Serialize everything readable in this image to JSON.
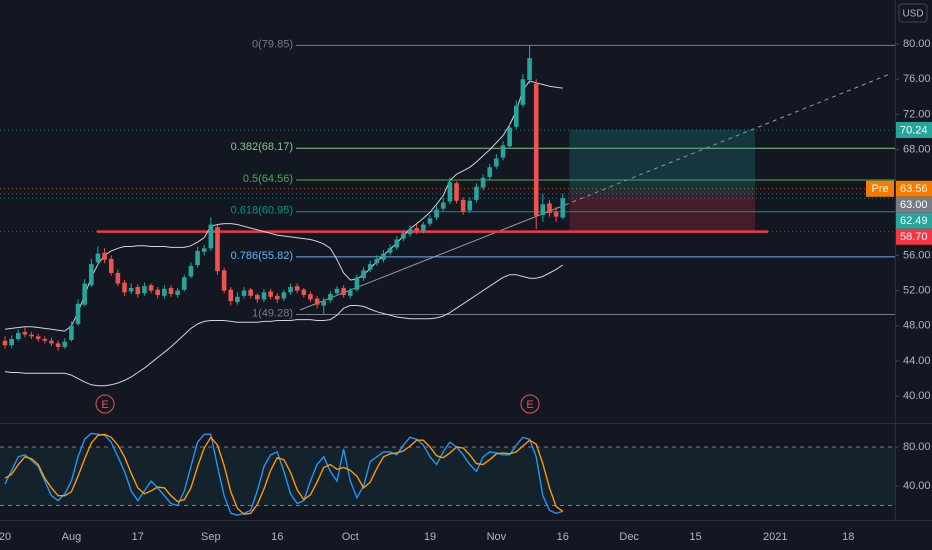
{
  "chart_data": {
    "type": "candlestick",
    "currency": "USD",
    "categories": [
      "20",
      null,
      null,
      null,
      null,
      null,
      null,
      null,
      null,
      null,
      "Aug",
      null,
      null,
      null,
      null,
      null,
      null,
      null,
      null,
      null,
      "17",
      null,
      null,
      null,
      null,
      null,
      null,
      null,
      null,
      null,
      null,
      "Sep",
      null,
      null,
      null,
      null,
      null,
      null,
      null,
      null,
      null,
      "16",
      null,
      null,
      null,
      null,
      null,
      null,
      null,
      null,
      null,
      null,
      "Oct",
      null,
      null,
      null,
      null,
      null,
      null,
      null,
      null,
      null,
      null,
      null,
      "19",
      null,
      null,
      null,
      null,
      null,
      null,
      null,
      null,
      null,
      "Nov",
      null,
      null,
      null,
      null,
      null,
      null,
      null,
      null,
      null,
      "16",
      null,
      null,
      null,
      null,
      null,
      null,
      null,
      null,
      null,
      "Dec",
      null,
      null,
      null,
      null,
      null,
      null,
      null,
      null,
      null,
      "15",
      null,
      null,
      null,
      null,
      null,
      null,
      null,
      null,
      null,
      null,
      null,
      "2021",
      null,
      null,
      null,
      null,
      null,
      null,
      null,
      null,
      null,
      null,
      "18",
      null,
      null,
      null,
      null,
      null,
      null,
      null
    ],
    "open": [
      46.3,
      45.8,
      46.5,
      47.3,
      47.0,
      46.8,
      46.5,
      46.3,
      46.0,
      45.6,
      46.4,
      48.2,
      50.4,
      52.6,
      55.2,
      56.3,
      55.6,
      54.0,
      52.9,
      51.9,
      52.4,
      51.7,
      52.6,
      52.1,
      51.4,
      52.3,
      51.5,
      52.1,
      53.6,
      54.9,
      56.4,
      56.8,
      59.2,
      54.3,
      52.1,
      50.7,
      51.4,
      52.1,
      51.5,
      51.0,
      51.9,
      51.4,
      51.1,
      51.8,
      52.5,
      52.1,
      51.6,
      51.1,
      50.3,
      50.9,
      51.7,
      52.3,
      51.4,
      52.1,
      53.4,
      54.4,
      55.1,
      55.5,
      56.3,
      56.9,
      57.9,
      58.4,
      59.1,
      58.8,
      59.6,
      60.3,
      61.3,
      62.1,
      64.2,
      62.3,
      61.1,
      62.3,
      63.7,
      64.9,
      66.1,
      67.1,
      68.4,
      70.6,
      73.1,
      75.9,
      75.5,
      60.6,
      61.9,
      60.9,
      60.3,
      null,
      null,
      null,
      null,
      null,
      null,
      null,
      null,
      null,
      null,
      null,
      null,
      null,
      null,
      null,
      null,
      null,
      null,
      null,
      null,
      null,
      null,
      null,
      null,
      null,
      null,
      null,
      null,
      null,
      null,
      null,
      null,
      null,
      null,
      null,
      null,
      null,
      null,
      null,
      null,
      null,
      null,
      null,
      null,
      null,
      null,
      null,
      null,
      null,
      null
    ],
    "high": [
      46.8,
      46.9,
      47.6,
      47.8,
      47.3,
      47.1,
      46.8,
      46.6,
      46.3,
      46.6,
      48.5,
      51.0,
      53.3,
      55.6,
      57.0,
      56.8,
      56.0,
      54.4,
      53.2,
      52.8,
      52.7,
      52.9,
      52.8,
      52.4,
      52.6,
      52.6,
      52.3,
      53.8,
      55.2,
      57.0,
      57.2,
      60.3,
      59.5,
      54.6,
      52.4,
      51.8,
      52.4,
      52.3,
      51.7,
      52.2,
      52.2,
      51.7,
      52.1,
      52.8,
      52.8,
      52.3,
      51.9,
      51.4,
      51.2,
      51.9,
      52.5,
      52.6,
      52.3,
      53.8,
      54.7,
      55.4,
      56.0,
      56.6,
      57.2,
      58.2,
      58.9,
      59.4,
      59.5,
      59.8,
      60.6,
      61.6,
      62.5,
      64.8,
      64.4,
      62.6,
      62.6,
      64.2,
      65.2,
      66.4,
      67.5,
      69.0,
      71.0,
      73.6,
      76.6,
      79.85,
      76.0,
      63.0,
      62.3,
      61.5,
      63.0,
      null,
      null,
      null,
      null,
      null,
      null,
      null,
      null,
      null,
      null,
      null,
      null,
      null,
      null,
      null,
      null,
      null,
      null,
      null,
      null,
      null,
      null,
      null,
      null,
      null,
      null,
      null,
      null,
      null,
      null,
      null,
      null,
      null,
      null,
      null,
      null,
      null,
      null,
      null,
      null,
      null,
      null,
      null,
      null,
      null,
      null,
      null,
      null,
      null,
      null
    ],
    "low": [
      45.4,
      45.5,
      46.3,
      46.7,
      46.5,
      46.2,
      46.0,
      45.7,
      45.2,
      45.4,
      46.2,
      48.0,
      50.2,
      52.4,
      54.9,
      55.1,
      53.7,
      52.5,
      51.4,
      51.6,
      51.2,
      51.4,
      51.7,
      51.1,
      51.1,
      51.3,
      51.2,
      51.9,
      53.4,
      54.6,
      56.0,
      56.5,
      53.8,
      51.7,
      50.3,
      50.4,
      51.1,
      51.1,
      50.6,
      50.7,
      51.0,
      50.6,
      50.8,
      51.5,
      51.7,
      51.2,
      50.7,
      50.0,
      49.3,
      50.6,
      51.4,
      51.2,
      51.1,
      51.9,
      53.1,
      54.1,
      54.8,
      55.2,
      56.0,
      56.6,
      57.6,
      58.1,
      58.4,
      58.5,
      59.3,
      60.0,
      61.0,
      61.8,
      61.9,
      60.6,
      60.8,
      62.0,
      63.4,
      64.6,
      65.8,
      66.8,
      68.1,
      70.3,
      72.8,
      75.5,
      59.0,
      59.8,
      60.4,
      59.8,
      60.1,
      null,
      null,
      null,
      null,
      null,
      null,
      null,
      null,
      null,
      null,
      null,
      null,
      null,
      null,
      null,
      null,
      null,
      null,
      null,
      null,
      null,
      null,
      null,
      null,
      null,
      null,
      null,
      null,
      null,
      null,
      null,
      null,
      null,
      null,
      null,
      null,
      null,
      null,
      null,
      null,
      null,
      null,
      null,
      null,
      null,
      null,
      null,
      null,
      null,
      null
    ],
    "close": [
      45.8,
      46.5,
      47.2,
      47.0,
      46.8,
      46.5,
      46.3,
      46.0,
      45.6,
      46.2,
      48.0,
      50.5,
      52.8,
      55.0,
      56.2,
      55.5,
      54.0,
      52.8,
      51.8,
      52.3,
      51.6,
      52.5,
      52.0,
      51.5,
      52.2,
      51.6,
      52.0,
      53.5,
      54.8,
      56.5,
      56.8,
      59.5,
      54.2,
      52.0,
      50.8,
      51.3,
      52.0,
      51.4,
      51.0,
      51.8,
      51.3,
      51.0,
      51.8,
      52.4,
      52.0,
      51.5,
      51.0,
      50.4,
      50.8,
      51.6,
      52.2,
      51.5,
      52.0,
      53.5,
      54.3,
      55.0,
      55.6,
      56.2,
      56.8,
      57.8,
      58.5,
      59.0,
      58.8,
      59.5,
      60.2,
      61.2,
      62.0,
      64.3,
      62.2,
      61.0,
      62.2,
      63.8,
      64.8,
      66.0,
      67.0,
      68.5,
      70.5,
      73.0,
      76.0,
      78.4,
      60.5,
      61.8,
      60.8,
      60.4,
      62.49,
      null,
      null,
      null,
      null,
      null,
      null,
      null,
      null,
      null,
      null,
      null,
      null,
      null,
      null,
      null,
      null,
      null,
      null,
      null,
      null,
      null,
      null,
      null,
      null,
      null,
      null,
      null,
      null,
      null,
      null,
      null,
      null,
      null,
      null,
      null,
      null,
      null,
      null,
      null,
      null,
      null,
      null,
      null,
      null,
      null,
      null,
      null,
      null,
      null,
      null
    ],
    "colors": {
      "up": "#26a69a",
      "down": "#ef5350"
    },
    "ylim": [
      37.3,
      85
    ],
    "yticks": [
      {
        "value": 40,
        "label": "40.00"
      },
      {
        "value": 44,
        "label": "44.00"
      },
      {
        "value": 48,
        "label": "48.00"
      },
      {
        "value": 52,
        "label": "52.00"
      },
      {
        "value": 56,
        "label": "56.00"
      },
      {
        "value": 68,
        "label": "68.00"
      },
      {
        "value": 72,
        "label": "72.00"
      },
      {
        "value": 76,
        "label": "76.00"
      },
      {
        "value": 80,
        "label": "80.00"
      }
    ],
    "bollinger": {
      "color": "#d1d4dc",
      "upper": [
        47.6,
        47.7,
        47.8,
        47.9,
        47.9,
        47.8,
        47.7,
        47.6,
        47.5,
        47.4,
        48.0,
        49.5,
        51.5,
        53.5,
        55.0,
        56.0,
        56.5,
        56.8,
        57.0,
        57.0,
        57.1,
        57.1,
        57.0,
        57.0,
        57.0,
        56.9,
        56.9,
        56.9,
        57.1,
        57.5,
        58.0,
        59.3,
        59.5,
        59.6,
        59.6,
        59.5,
        59.3,
        59.1,
        58.9,
        58.7,
        58.5,
        58.3,
        58.2,
        58.1,
        58.0,
        57.9,
        57.8,
        57.6,
        57.3,
        56.8,
        55.5,
        54.0,
        53.2,
        53.3,
        53.8,
        54.5,
        55.3,
        56.0,
        56.7,
        57.4,
        58.2,
        59.0,
        59.6,
        60.2,
        60.9,
        61.8,
        62.8,
        64.5,
        65.2,
        65.6,
        66.0,
        66.6,
        67.3,
        68.0,
        68.8,
        69.6,
        70.8,
        72.4,
        74.8,
        75.8,
        75.6,
        75.4,
        75.2,
        75.1,
        75.0,
        null,
        null,
        null,
        null,
        null,
        null,
        null,
        null,
        null,
        null,
        null,
        null,
        null,
        null,
        null,
        null,
        null,
        null,
        null,
        null,
        null,
        null,
        null,
        null,
        null,
        null,
        null,
        null,
        null,
        null,
        null,
        null,
        null,
        null,
        null,
        null,
        null,
        null,
        null,
        null,
        null,
        null,
        null,
        null,
        null,
        null,
        null,
        null,
        null,
        null
      ],
      "lower": [
        42.8,
        42.7,
        42.7,
        42.6,
        42.6,
        42.6,
        42.6,
        42.6,
        42.6,
        42.6,
        42.4,
        42.0,
        41.6,
        41.3,
        41.2,
        41.2,
        41.3,
        41.5,
        41.8,
        42.2,
        42.7,
        43.2,
        43.8,
        44.4,
        45.0,
        45.6,
        46.3,
        47.0,
        47.7,
        48.2,
        48.5,
        48.6,
        48.6,
        48.6,
        48.5,
        48.4,
        48.4,
        48.4,
        48.4,
        48.5,
        48.5,
        48.6,
        48.6,
        48.6,
        48.7,
        48.7,
        48.7,
        48.6,
        48.6,
        48.7,
        49.2,
        50.0,
        50.3,
        50.3,
        50.2,
        49.9,
        49.6,
        49.4,
        49.2,
        49.0,
        48.9,
        48.8,
        48.8,
        48.8,
        48.8,
        48.9,
        49.1,
        49.5,
        50.0,
        50.5,
        51.0,
        51.5,
        52.0,
        52.5,
        53.0,
        53.5,
        53.8,
        53.8,
        53.6,
        53.4,
        53.4,
        53.6,
        54.0,
        54.4,
        54.9,
        null,
        null,
        null,
        null,
        null,
        null,
        null,
        null,
        null,
        null,
        null,
        null,
        null,
        null,
        null,
        null,
        null,
        null,
        null,
        null,
        null,
        null,
        null,
        null,
        null,
        null,
        null,
        null,
        null,
        null,
        null,
        null,
        null,
        null,
        null,
        null,
        null,
        null,
        null,
        null,
        null,
        null,
        null,
        null,
        null,
        null,
        null,
        null,
        null,
        null
      ]
    },
    "fib_levels": [
      {
        "label": "0(79.85)",
        "value": 79.85,
        "color": "#787b86"
      },
      {
        "label": "0.382(68.17)",
        "value": 68.17,
        "color": "#81c784"
      },
      {
        "label": "0.5(64.56)",
        "value": 64.56,
        "color": "#4caf50"
      },
      {
        "label": "0.618(60.95)",
        "value": 60.95,
        "color": "#009688"
      },
      {
        "label": "0.786(55.82)",
        "value": 55.82,
        "color": "#64b5f6"
      },
      {
        "label": "1(49.28)",
        "value": 49.28,
        "color": "#787b86"
      }
    ],
    "price_badges": [
      {
        "value": 70.24,
        "color": "#26a69a"
      },
      {
        "prefix": "Pre",
        "value": 63.56,
        "color": "#f57c00"
      },
      {
        "value": 63,
        "label": "63.00",
        "color": "#787b86"
      },
      {
        "value": 62.49,
        "color": "#26a69a"
      },
      {
        "value": 58.7,
        "label": "58.70",
        "color": "#f23645"
      }
    ],
    "events": [
      "E",
      "E"
    ],
    "stochastic": {
      "ylim": [
        5.1,
        99.5
      ],
      "yticks": [
        {
          "value": 40,
          "label": "40.00"
        },
        {
          "value": 80,
          "label": "80.00"
        }
      ],
      "bands": [
        20,
        80
      ],
      "series": [
        {
          "color": "#2196f3",
          "values": [
            42,
            56,
            70,
            72,
            66,
            60,
            45,
            30,
            25,
            32,
            45,
            70,
            88,
            94,
            93,
            92,
            85,
            70,
            55,
            35,
            25,
            35,
            45,
            38,
            30,
            22,
            20,
            35,
            60,
            85,
            93,
            93,
            60,
            30,
            12,
            10,
            12,
            15,
            35,
            60,
            72,
            75,
            55,
            32,
            22,
            25,
            45,
            62,
            70,
            55,
            45,
            78,
            45,
            28,
            40,
            65,
            70,
            75,
            75,
            72,
            82,
            90,
            88,
            82,
            70,
            62,
            75,
            85,
            80,
            72,
            62,
            55,
            70,
            75,
            74,
            72,
            72,
            82,
            90,
            88,
            70,
            30,
            15,
            12,
            14,
            null,
            null,
            null,
            null,
            null,
            null,
            null,
            null,
            null,
            null,
            null,
            null,
            null,
            null,
            null,
            null,
            null,
            null,
            null,
            null,
            null,
            null,
            null,
            null,
            null,
            null,
            null,
            null,
            null,
            null,
            null,
            null,
            null,
            null,
            null,
            null,
            null,
            null,
            null,
            null,
            null,
            null,
            null,
            null,
            null,
            null,
            null,
            null,
            null,
            null
          ]
        },
        {
          "color": "#ff9800",
          "values": [
            48,
            52,
            62,
            70,
            68,
            62,
            48,
            38,
            30,
            30,
            34,
            50,
            68,
            84,
            92,
            93,
            90,
            82,
            70,
            53,
            38,
            32,
            35,
            39,
            38,
            30,
            24,
            26,
            38,
            60,
            79,
            90,
            82,
            61,
            34,
            17,
            11,
            12,
            21,
            37,
            56,
            69,
            67,
            54,
            36,
            26,
            31,
            44,
            59,
            62,
            57,
            59,
            56,
            50,
            38,
            44,
            58,
            70,
            73,
            74,
            76,
            81,
            87,
            87,
            80,
            71,
            69,
            74,
            80,
            79,
            72,
            63,
            62,
            67,
            73,
            74,
            73,
            75,
            81,
            87,
            83,
            63,
            38,
            19,
            14,
            null,
            null,
            null,
            null,
            null,
            null,
            null,
            null,
            null,
            null,
            null,
            null,
            null,
            null,
            null,
            null,
            null,
            null,
            null,
            null,
            null,
            null,
            null,
            null,
            null,
            null,
            null,
            null,
            null,
            null,
            null,
            null,
            null,
            null,
            null,
            null,
            null,
            null,
            null,
            null,
            null,
            null,
            null,
            null,
            null,
            null,
            null,
            null,
            null,
            null
          ]
        }
      ]
    }
  }
}
